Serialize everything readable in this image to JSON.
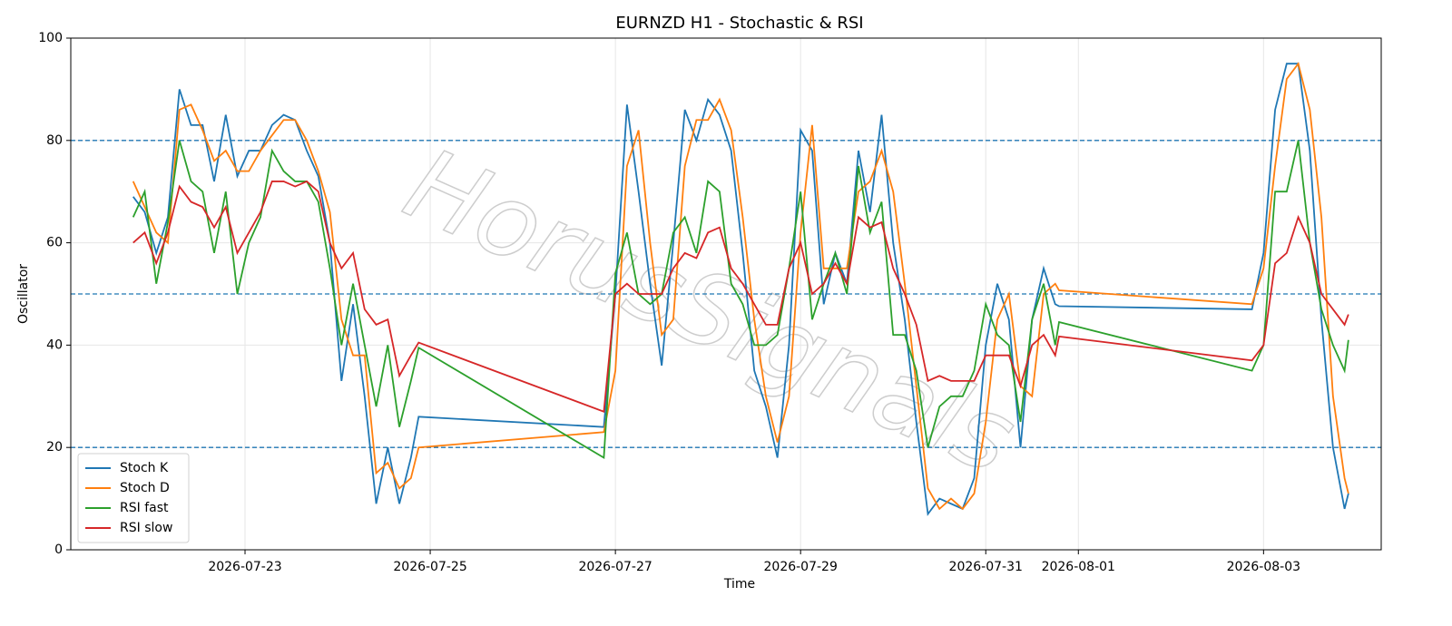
{
  "chart_data": {
    "type": "line",
    "title": "EURNZD H1 - Stochastic & RSI",
    "xlabel": "Time",
    "ylabel": "Oscillator",
    "watermark": "HorusSignals",
    "x": [
      "2026-07-21T19:00",
      "2026-07-21T22:00",
      "2026-07-22T01:00",
      "2026-07-22T04:00",
      "2026-07-22T07:00",
      "2026-07-22T10:00",
      "2026-07-22T13:00",
      "2026-07-22T16:00",
      "2026-07-22T19:00",
      "2026-07-22T22:00",
      "2026-07-23T01:00",
      "2026-07-23T04:00",
      "2026-07-23T07:00",
      "2026-07-23T10:00",
      "2026-07-23T13:00",
      "2026-07-23T16:00",
      "2026-07-23T19:00",
      "2026-07-23T22:00",
      "2026-07-24T01:00",
      "2026-07-24T04:00",
      "2026-07-24T07:00",
      "2026-07-24T10:00",
      "2026-07-24T13:00",
      "2026-07-24T16:00",
      "2026-07-24T19:00",
      "2026-07-24T21:00",
      "2026-07-26T21:00",
      "2026-07-27T00:00",
      "2026-07-27T03:00",
      "2026-07-27T06:00",
      "2026-07-27T09:00",
      "2026-07-27T12:00",
      "2026-07-27T15:00",
      "2026-07-27T18:00",
      "2026-07-27T21:00",
      "2026-07-28T00:00",
      "2026-07-28T03:00",
      "2026-07-28T06:00",
      "2026-07-28T09:00",
      "2026-07-28T12:00",
      "2026-07-28T15:00",
      "2026-07-28T18:00",
      "2026-07-28T21:00",
      "2026-07-29T00:00",
      "2026-07-29T03:00",
      "2026-07-29T06:00",
      "2026-07-29T09:00",
      "2026-07-29T12:00",
      "2026-07-29T15:00",
      "2026-07-29T18:00",
      "2026-07-29T21:00",
      "2026-07-30T00:00",
      "2026-07-30T03:00",
      "2026-07-30T06:00",
      "2026-07-30T09:00",
      "2026-07-30T12:00",
      "2026-07-30T15:00",
      "2026-07-30T18:00",
      "2026-07-30T21:00",
      "2026-07-31T00:00",
      "2026-07-31T03:00",
      "2026-07-31T06:00",
      "2026-07-31T09:00",
      "2026-07-31T12:00",
      "2026-07-31T15:00",
      "2026-07-31T18:00",
      "2026-07-31T19:00",
      "2026-08-02T21:00",
      "2026-08-03T00:00",
      "2026-08-03T03:00",
      "2026-08-03T06:00",
      "2026-08-03T09:00",
      "2026-08-03T12:00",
      "2026-08-03T15:00",
      "2026-08-03T18:00",
      "2026-08-03T21:00",
      "2026-08-03T22:00"
    ],
    "series": [
      {
        "name": "Stoch K",
        "color": "#1f77b4",
        "values": [
          69,
          66,
          58,
          65,
          90,
          83,
          83,
          72,
          85,
          73,
          78,
          78,
          83,
          85,
          84,
          78,
          73,
          60,
          33,
          48,
          30,
          9,
          20,
          9,
          18,
          26,
          24,
          50,
          87,
          70,
          52,
          36,
          60,
          86,
          80,
          88,
          85,
          78,
          58,
          35,
          28,
          18,
          40,
          82,
          78,
          48,
          58,
          52,
          78,
          66,
          85,
          60,
          45,
          25,
          7,
          10,
          9,
          8,
          14,
          40,
          52,
          45,
          20,
          45,
          55,
          48,
          47.6,
          47,
          58,
          86,
          95,
          95,
          78,
          45,
          20,
          8,
          11
        ]
      },
      {
        "name": "Stoch D",
        "color": "#ff7f0e",
        "values": [
          72,
          67,
          62,
          60,
          86,
          87,
          82,
          76,
          78,
          74,
          74,
          78,
          81,
          84,
          84,
          80,
          74,
          66,
          45,
          38,
          38,
          15,
          17,
          12,
          14,
          20,
          23,
          35,
          75,
          82,
          60,
          42,
          45,
          75,
          84,
          84,
          88,
          82,
          65,
          45,
          30,
          21,
          30,
          62,
          83,
          55,
          55,
          55,
          70,
          72,
          78,
          70,
          52,
          32,
          12,
          8,
          10,
          8,
          11,
          25,
          45,
          50,
          32,
          30,
          50,
          52,
          50.7,
          48,
          55,
          75,
          92,
          95,
          86,
          65,
          30,
          14,
          11
        ]
      },
      {
        "name": "RSI fast",
        "color": "#2ca02c",
        "values": [
          65,
          70,
          52,
          64,
          80,
          72,
          70,
          58,
          70,
          50,
          60,
          65,
          78,
          74,
          72,
          72,
          68,
          55,
          40,
          52,
          40,
          28,
          40,
          24,
          33,
          39.5,
          18,
          54,
          62,
          50,
          48,
          50,
          62,
          65,
          58,
          72,
          70,
          52,
          48,
          40,
          40,
          42,
          55,
          70,
          45,
          52,
          58,
          50,
          75,
          62,
          68,
          42,
          42,
          35,
          20,
          28,
          30,
          30,
          35,
          48,
          42,
          40,
          25,
          45,
          52,
          40,
          44.5,
          35,
          40,
          70,
          70,
          80,
          60,
          47,
          40,
          35,
          41
        ]
      },
      {
        "name": "RSI slow",
        "color": "#d62728",
        "values": [
          60,
          62,
          56,
          62,
          71,
          68,
          67,
          63,
          67,
          58,
          62,
          66,
          72,
          72,
          71,
          72,
          70,
          60,
          55,
          58,
          47,
          44,
          45,
          34,
          38,
          40.5,
          27,
          50,
          52,
          50,
          50,
          50,
          55,
          58,
          57,
          62,
          63,
          55,
          52,
          48,
          44,
          44,
          55,
          60,
          50,
          52,
          56,
          52,
          65,
          63,
          64,
          55,
          50,
          44,
          33,
          34,
          33,
          33,
          33,
          38,
          38,
          38,
          32,
          40,
          42,
          38,
          41.7,
          37,
          40,
          56,
          58,
          65,
          60,
          50,
          47,
          44,
          46
        ]
      }
    ],
    "xlim": [
      "2026-07-21T02:50",
      "2026-08-04T06:30"
    ],
    "xticks": [
      "2026-07-23",
      "2026-07-25",
      "2026-07-27",
      "2026-07-29",
      "2026-07-31",
      "2026-08-01",
      "2026-08-03"
    ],
    "ylim": [
      0,
      100
    ],
    "yticks": [
      0,
      20,
      40,
      60,
      80,
      100
    ],
    "hlines": [
      20,
      50,
      80
    ],
    "hline_color": "#1f77b4",
    "grid": true,
    "legend": "lower left"
  }
}
